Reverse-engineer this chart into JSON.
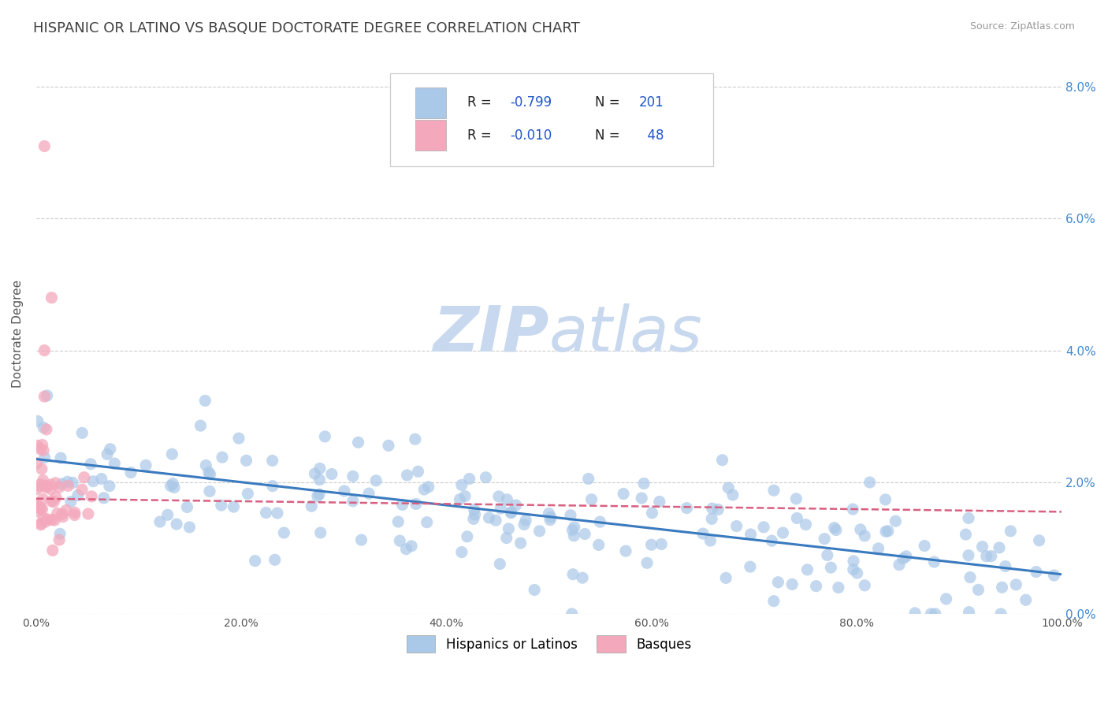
{
  "title": "HISPANIC OR LATINO VS BASQUE DOCTORATE DEGREE CORRELATION CHART",
  "source": "Source: ZipAtlas.com",
  "ylabel": "Doctorate Degree",
  "watermark_zip": "ZIP",
  "watermark_atlas": "atlas",
  "legend_label_blue": "Hispanics or Latinos",
  "legend_label_pink": "Basques",
  "xlim": [
    0,
    1.0
  ],
  "ylim": [
    0,
    0.085
  ],
  "xticks": [
    0.0,
    0.2,
    0.4,
    0.6,
    0.8,
    1.0
  ],
  "xtick_labels": [
    "0.0%",
    "20.0%",
    "40.0%",
    "60.0%",
    "80.0%",
    "100.0%"
  ],
  "yticks_right": [
    0.0,
    0.02,
    0.04,
    0.06,
    0.08
  ],
  "ytick_labels_right": [
    "0.0%",
    "2.0%",
    "4.0%",
    "6.0%",
    "8.0%"
  ],
  "blue_scatter_color": "#aac8e8",
  "pink_scatter_color": "#f4a8bc",
  "blue_line_color": "#3a7abf",
  "pink_line_color": "#d86080",
  "grid_color": "#cccccc",
  "background_color": "#ffffff",
  "title_color": "#404040",
  "title_fontsize": 13,
  "axis_label_fontsize": 10,
  "source_fontsize": 9,
  "watermark_zip_color": "#c8d8ee",
  "watermark_atlas_color": "#c8d8ee",
  "n_blue": 201,
  "n_pink": 48,
  "blue_trend_x": [
    0.0,
    1.0
  ],
  "blue_trend_y": [
    0.0235,
    0.006
  ],
  "pink_trend_x": [
    0.0,
    1.0
  ],
  "pink_trend_y": [
    0.0175,
    0.0155
  ],
  "legend_r1": "R = -0.799",
  "legend_n1": "N = 201",
  "legend_r2": "R = -0.010",
  "legend_n2": "N =  48"
}
